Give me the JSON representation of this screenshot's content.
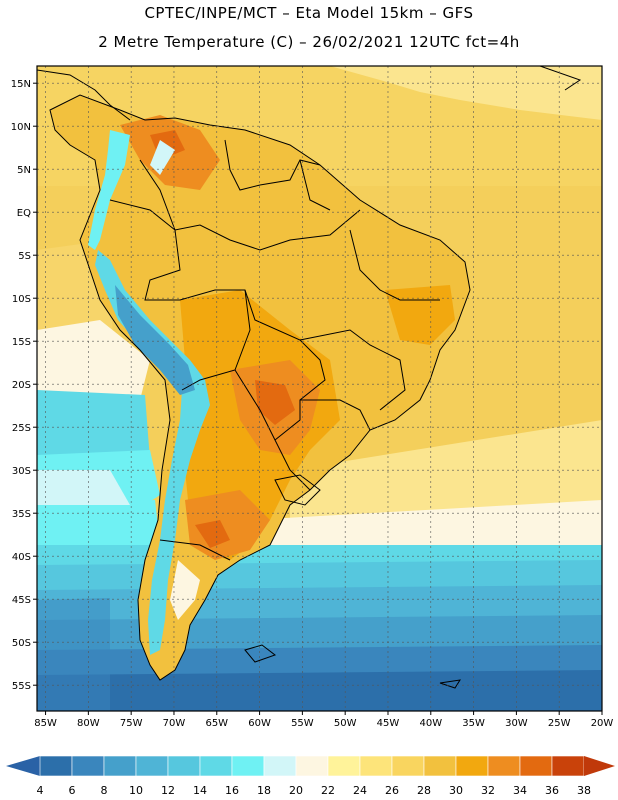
{
  "header": {
    "line1": "CPTEC/INPE/MCT –  Eta Model 15km – GFS",
    "line2": "2 Metre Temperature (C) – 26/02/2021 12UTC fct=4h"
  },
  "map": {
    "lat_labels": [
      "15N",
      "10N",
      "5N",
      "EQ",
      "5S",
      "10S",
      "15S",
      "20S",
      "25S",
      "30S",
      "35S",
      "40S",
      "45S",
      "50S",
      "55S"
    ],
    "lon_labels": [
      "85W",
      "80W",
      "75W",
      "70W",
      "65W",
      "60W",
      "55W",
      "50W",
      "45W",
      "40W",
      "35W",
      "30W",
      "25W",
      "20W"
    ],
    "lat_range": [
      17,
      -58
    ],
    "lon_range": [
      -86,
      -20
    ]
  },
  "legend": {
    "ticks": [
      "4",
      "6",
      "8",
      "10",
      "12",
      "14",
      "16",
      "18",
      "20",
      "22",
      "24",
      "26",
      "28",
      "30",
      "32",
      "34",
      "36",
      "38"
    ],
    "colors": [
      "#2c6faa",
      "#3a86bd",
      "#45a0cb",
      "#4fb4d6",
      "#56c7de",
      "#5fd9e6",
      "#6ff1f3",
      "#d2f6f8",
      "#fdf6e1",
      "#fff39a",
      "#fde47a",
      "#f9d55f",
      "#f2c13e",
      "#f2a80f",
      "#ee8d20",
      "#e36a10",
      "#c9420a"
    ],
    "under_color": "#2a62a6",
    "over_color": "#c0390a"
  }
}
